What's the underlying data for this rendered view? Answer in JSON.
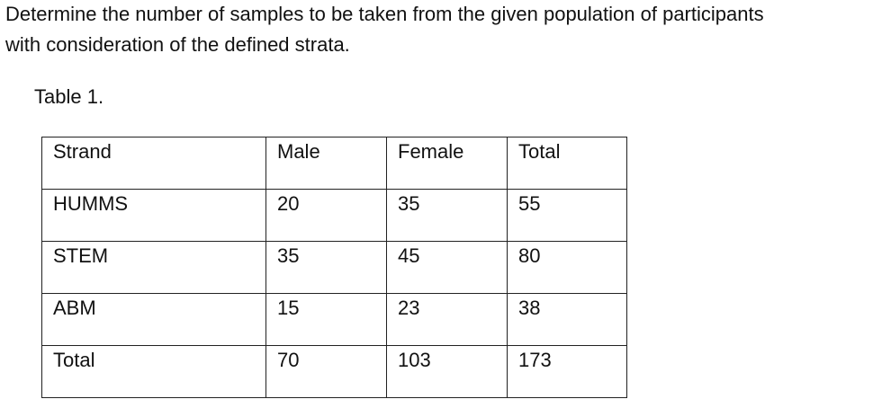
{
  "question": {
    "lines": [
      "Determine the number of samples to be taken from the given population of participants",
      "with consideration of the defined strata."
    ]
  },
  "table": {
    "caption": "Table 1.",
    "header": [
      "Strand",
      "Male",
      "Female",
      "Total"
    ],
    "rows": [
      [
        "HUMMS",
        20,
        35,
        55
      ],
      [
        "STEM",
        35,
        45,
        80
      ],
      [
        "ABM",
        15,
        23,
        38
      ],
      [
        "Total",
        70,
        103,
        173
      ]
    ]
  }
}
